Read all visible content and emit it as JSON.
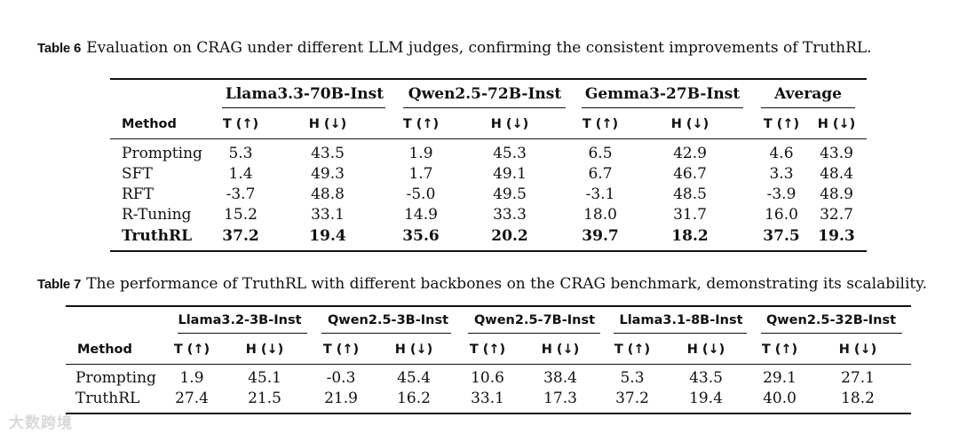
{
  "table6": {
    "caption_label": "Table 6",
    "caption_text": "Evaluation on CRAG under different LLM judges, confirming the consistent improvements of TruthRL.",
    "method_header": "Method",
    "groups": [
      "Llama3.3-70B-Inst",
      "Qwen2.5-72B-Inst",
      "Gemma3-27B-Inst",
      "Average"
    ],
    "t_header": "T (↑)",
    "h_header": "H (↓)",
    "rows": [
      {
        "method": "Prompting",
        "values": [
          "5.3",
          "43.5",
          "1.9",
          "45.3",
          "6.5",
          "42.9",
          "4.6",
          "43.9"
        ]
      },
      {
        "method": "SFT",
        "values": [
          "1.4",
          "49.3",
          "1.7",
          "49.1",
          "6.7",
          "46.7",
          "3.3",
          "48.4"
        ]
      },
      {
        "method": "RFT",
        "values": [
          "-3.7",
          "48.8",
          "-5.0",
          "49.5",
          "-3.1",
          "48.5",
          "-3.9",
          "48.9"
        ]
      },
      {
        "method": "R-Tuning",
        "values": [
          "15.2",
          "33.1",
          "14.9",
          "33.3",
          "18.0",
          "31.7",
          "16.0",
          "32.7"
        ]
      },
      {
        "method": "TruthRL",
        "values": [
          "37.2",
          "19.4",
          "35.6",
          "20.2",
          "39.7",
          "18.2",
          "37.5",
          "19.3"
        ]
      }
    ]
  },
  "table7": {
    "caption_label": "Table 7",
    "caption_text": "The performance of TruthRL with different backbones on the CRAG benchmark, demonstrating its scalability.",
    "method_header": "Method",
    "groups": [
      "Llama3.2-3B-Inst",
      "Qwen2.5-3B-Inst",
      "Qwen2.5-7B-Inst",
      "Llama3.1-8B-Inst",
      "Qwen2.5-32B-Inst"
    ],
    "t_header": "T (↑)",
    "h_header": "H (↓)",
    "rows": [
      {
        "method": "Prompting",
        "values": [
          "1.9",
          "45.1",
          "-0.3",
          "45.4",
          "10.6",
          "38.4",
          "5.3",
          "43.5",
          "29.1",
          "27.1"
        ]
      },
      {
        "method": "TruthRL",
        "values": [
          "27.4",
          "21.5",
          "21.9",
          "16.2",
          "33.1",
          "17.3",
          "37.2",
          "19.4",
          "40.0",
          "18.2"
        ]
      }
    ]
  },
  "watermark": "大数跨境"
}
